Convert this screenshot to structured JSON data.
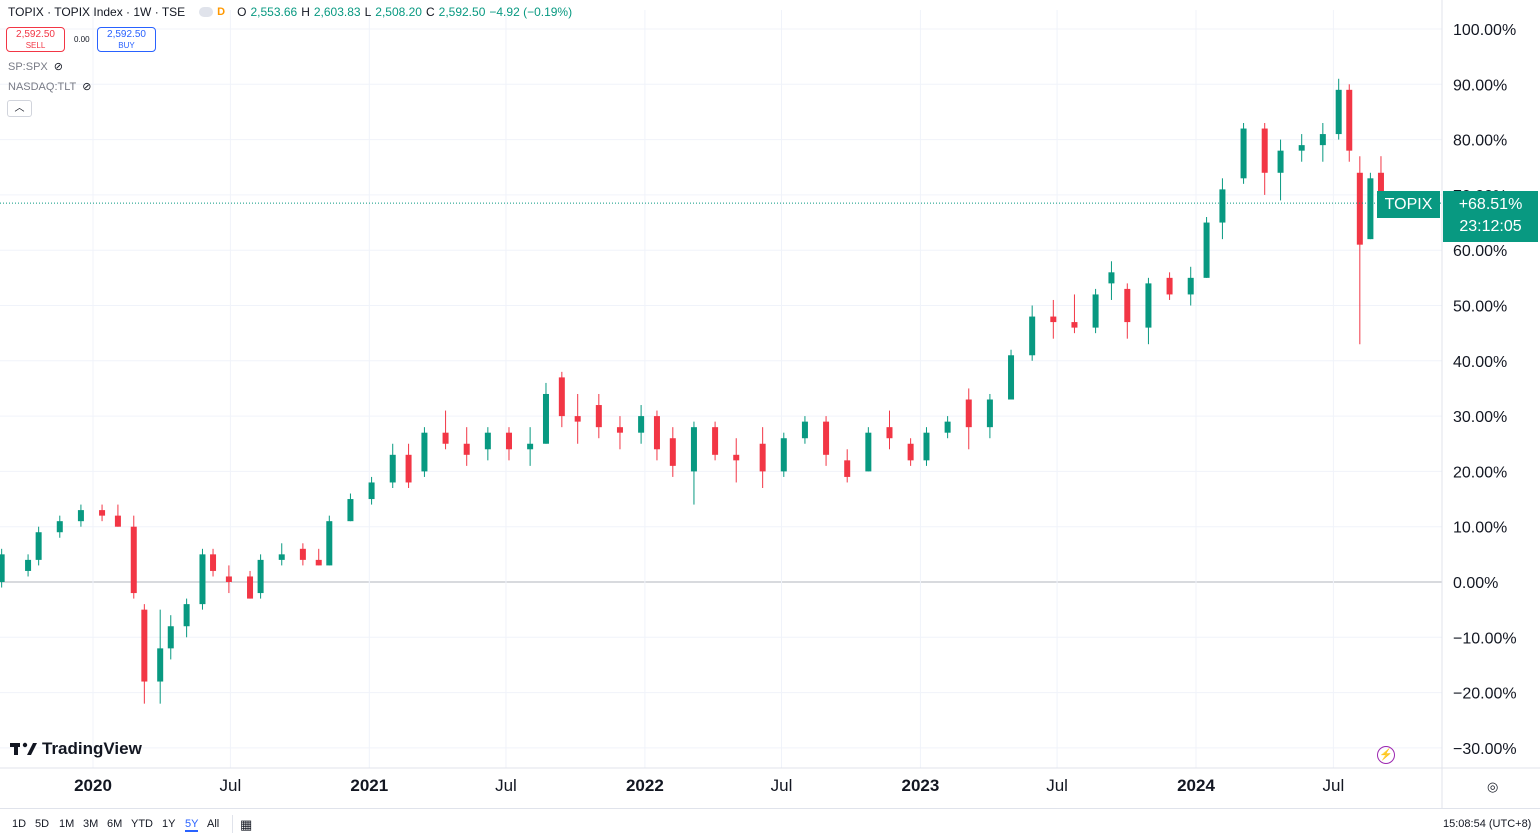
{
  "header": {
    "title": "TOPIX · TOPIX Index · 1W · TSE",
    "badge": "D",
    "open_label": "O",
    "open": "2,553.66",
    "high_label": "H",
    "high": "2,603.83",
    "low_label": "L",
    "low": "2,508.20",
    "close_label": "C",
    "close": "2,592.50",
    "change": "−4.92 (−0.19%)"
  },
  "trade": {
    "sell_price": "2,592.50",
    "sell_label": "SELL",
    "spread": "0.00",
    "buy_price": "2,592.50",
    "buy_label": "BUY"
  },
  "comparisons": [
    "SP:SPX",
    "NASDAQ:TLT"
  ],
  "price_label": {
    "symbol": "TOPIX",
    "value": "+68.51%",
    "countdown": "23:12:05"
  },
  "logo_text": "TradingView",
  "ranges": [
    "1D",
    "5D",
    "1M",
    "3M",
    "6M",
    "YTD",
    "1Y",
    "5Y",
    "All"
  ],
  "active_range": "5Y",
  "clock": "15:08:54 (UTC+8)",
  "colors": {
    "up": "#089981",
    "down": "#f23645",
    "accent": "#2962ff",
    "grid": "#f0f3fa"
  },
  "icons": [
    "eye-crossed-icon",
    "chevron-up-icon",
    "calendar-icon",
    "settings-icon",
    "lightning-icon"
  ],
  "chart_data": {
    "type": "candlestick",
    "yunit": "%",
    "ylim": [
      -33,
      103
    ],
    "ticks": [
      "100.00%",
      "90.00%",
      "80.00%",
      "70.00%",
      "60.00%",
      "50.00%",
      "40.00%",
      "30.00%",
      "20.00%",
      "10.00%",
      "0.00%",
      "−10.00%",
      "−20.00%",
      "−30.00%"
    ],
    "tick_values": [
      100,
      90,
      80,
      70,
      60,
      50,
      40,
      30,
      20,
      10,
      0,
      -10,
      -20,
      -30
    ],
    "x_labels": [
      {
        "label": "2020",
        "date": "2020-01-01",
        "bold": true
      },
      {
        "label": "Jul",
        "date": "2020-07-01",
        "bold": false
      },
      {
        "label": "2021",
        "date": "2021-01-01",
        "bold": true
      },
      {
        "label": "Jul",
        "date": "2021-07-01",
        "bold": false
      },
      {
        "label": "2022",
        "date": "2022-01-01",
        "bold": true
      },
      {
        "label": "Jul",
        "date": "2022-07-01",
        "bold": false
      },
      {
        "label": "2023",
        "date": "2023-01-01",
        "bold": true
      },
      {
        "label": "Jul",
        "date": "2023-07-01",
        "bold": false
      },
      {
        "label": "2024",
        "date": "2024-01-01",
        "bold": true
      },
      {
        "label": "Jul",
        "date": "2024-07-01",
        "bold": false
      }
    ],
    "last_value": 68.51,
    "ohlc": [
      {
        "t": "2019-09-02",
        "o": 0,
        "h": 6,
        "l": -1,
        "c": 5
      },
      {
        "t": "2019-10-07",
        "o": 2,
        "h": 5,
        "l": 1,
        "c": 4
      },
      {
        "t": "2019-10-21",
        "o": 4,
        "h": 10,
        "l": 3,
        "c": 9
      },
      {
        "t": "2019-11-18",
        "o": 9,
        "h": 12,
        "l": 8,
        "c": 11
      },
      {
        "t": "2019-12-16",
        "o": 11,
        "h": 14,
        "l": 10,
        "c": 13
      },
      {
        "t": "2020-01-13",
        "o": 13,
        "h": 14,
        "l": 11,
        "c": 12
      },
      {
        "t": "2020-02-03",
        "o": 12,
        "h": 14,
        "l": 10,
        "c": 10
      },
      {
        "t": "2020-02-24",
        "o": 10,
        "h": 12,
        "l": -3,
        "c": -2
      },
      {
        "t": "2020-03-09",
        "o": -5,
        "h": -4,
        "l": -22,
        "c": -18
      },
      {
        "t": "2020-03-30",
        "o": -18,
        "h": -5,
        "l": -22,
        "c": -12
      },
      {
        "t": "2020-04-13",
        "o": -12,
        "h": -6,
        "l": -14,
        "c": -8
      },
      {
        "t": "2020-05-04",
        "o": -8,
        "h": -3,
        "l": -10,
        "c": -4
      },
      {
        "t": "2020-05-25",
        "o": -4,
        "h": 6,
        "l": -5,
        "c": 5
      },
      {
        "t": "2020-06-08",
        "o": 5,
        "h": 6,
        "l": 1,
        "c": 2
      },
      {
        "t": "2020-06-29",
        "o": 1,
        "h": 3,
        "l": -2,
        "c": 0
      },
      {
        "t": "2020-07-27",
        "o": 1,
        "h": 2,
        "l": -3,
        "c": -3
      },
      {
        "t": "2020-08-10",
        "o": -2,
        "h": 5,
        "l": -3,
        "c": 4
      },
      {
        "t": "2020-09-07",
        "o": 4,
        "h": 7,
        "l": 3,
        "c": 5
      },
      {
        "t": "2020-10-05",
        "o": 6,
        "h": 7,
        "l": 3,
        "c": 4
      },
      {
        "t": "2020-10-26",
        "o": 4,
        "h": 6,
        "l": 3,
        "c": 3
      },
      {
        "t": "2020-11-09",
        "o": 3,
        "h": 12,
        "l": 3,
        "c": 11
      },
      {
        "t": "2020-12-07",
        "o": 11,
        "h": 16,
        "l": 11,
        "c": 15
      },
      {
        "t": "2021-01-04",
        "o": 15,
        "h": 19,
        "l": 14,
        "c": 18
      },
      {
        "t": "2021-02-01",
        "o": 18,
        "h": 25,
        "l": 17,
        "c": 23
      },
      {
        "t": "2021-02-22",
        "o": 23,
        "h": 25,
        "l": 17,
        "c": 18
      },
      {
        "t": "2021-03-15",
        "o": 20,
        "h": 28,
        "l": 19,
        "c": 27
      },
      {
        "t": "2021-04-12",
        "o": 27,
        "h": 31,
        "l": 24,
        "c": 25
      },
      {
        "t": "2021-05-10",
        "o": 25,
        "h": 28,
        "l": 21,
        "c": 23
      },
      {
        "t": "2021-06-07",
        "o": 24,
        "h": 28,
        "l": 22,
        "c": 27
      },
      {
        "t": "2021-07-05",
        "o": 27,
        "h": 28,
        "l": 22,
        "c": 24
      },
      {
        "t": "2021-08-02",
        "o": 24,
        "h": 28,
        "l": 21,
        "c": 25
      },
      {
        "t": "2021-08-23",
        "o": 25,
        "h": 36,
        "l": 25,
        "c": 34
      },
      {
        "t": "2021-09-13",
        "o": 37,
        "h": 38,
        "l": 28,
        "c": 30
      },
      {
        "t": "2021-10-04",
        "o": 30,
        "h": 34,
        "l": 25,
        "c": 29
      },
      {
        "t": "2021-11-01",
        "o": 32,
        "h": 34,
        "l": 26,
        "c": 28
      },
      {
        "t": "2021-11-29",
        "o": 28,
        "h": 30,
        "l": 24,
        "c": 27
      },
      {
        "t": "2021-12-27",
        "o": 27,
        "h": 32,
        "l": 25,
        "c": 30
      },
      {
        "t": "2022-01-17",
        "o": 30,
        "h": 31,
        "l": 22,
        "c": 24
      },
      {
        "t": "2022-02-07",
        "o": 26,
        "h": 28,
        "l": 19,
        "c": 21
      },
      {
        "t": "2022-03-07",
        "o": 20,
        "h": 29,
        "l": 14,
        "c": 28
      },
      {
        "t": "2022-04-04",
        "o": 28,
        "h": 29,
        "l": 22,
        "c": 23
      },
      {
        "t": "2022-05-02",
        "o": 23,
        "h": 26,
        "l": 18,
        "c": 22
      },
      {
        "t": "2022-06-06",
        "o": 25,
        "h": 28,
        "l": 17,
        "c": 20
      },
      {
        "t": "2022-07-04",
        "o": 20,
        "h": 27,
        "l": 19,
        "c": 26
      },
      {
        "t": "2022-08-01",
        "o": 26,
        "h": 30,
        "l": 25,
        "c": 29
      },
      {
        "t": "2022-08-29",
        "o": 29,
        "h": 30,
        "l": 21,
        "c": 23
      },
      {
        "t": "2022-09-26",
        "o": 22,
        "h": 24,
        "l": 18,
        "c": 19
      },
      {
        "t": "2022-10-24",
        "o": 20,
        "h": 28,
        "l": 20,
        "c": 27
      },
      {
        "t": "2022-11-21",
        "o": 28,
        "h": 31,
        "l": 24,
        "c": 26
      },
      {
        "t": "2022-12-19",
        "o": 25,
        "h": 26,
        "l": 21,
        "c": 22
      },
      {
        "t": "2023-01-09",
        "o": 22,
        "h": 28,
        "l": 21,
        "c": 27
      },
      {
        "t": "2023-02-06",
        "o": 27,
        "h": 30,
        "l": 26,
        "c": 29
      },
      {
        "t": "2023-03-06",
        "o": 33,
        "h": 35,
        "l": 24,
        "c": 28
      },
      {
        "t": "2023-04-03",
        "o": 28,
        "h": 34,
        "l": 26,
        "c": 33
      },
      {
        "t": "2023-05-01",
        "o": 33,
        "h": 42,
        "l": 33,
        "c": 41
      },
      {
        "t": "2023-05-29",
        "o": 41,
        "h": 50,
        "l": 40,
        "c": 48
      },
      {
        "t": "2023-06-26",
        "o": 48,
        "h": 51,
        "l": 44,
        "c": 47
      },
      {
        "t": "2023-07-24",
        "o": 47,
        "h": 52,
        "l": 45,
        "c": 46
      },
      {
        "t": "2023-08-21",
        "o": 46,
        "h": 53,
        "l": 45,
        "c": 52
      },
      {
        "t": "2023-09-11",
        "o": 54,
        "h": 58,
        "l": 51,
        "c": 56
      },
      {
        "t": "2023-10-02",
        "o": 53,
        "h": 54,
        "l": 44,
        "c": 47
      },
      {
        "t": "2023-10-30",
        "o": 46,
        "h": 55,
        "l": 43,
        "c": 54
      },
      {
        "t": "2023-11-27",
        "o": 55,
        "h": 56,
        "l": 51,
        "c": 52
      },
      {
        "t": "2023-12-25",
        "o": 52,
        "h": 57,
        "l": 50,
        "c": 55
      },
      {
        "t": "2024-01-15",
        "o": 55,
        "h": 66,
        "l": 55,
        "c": 65
      },
      {
        "t": "2024-02-05",
        "o": 65,
        "h": 73,
        "l": 62,
        "c": 71
      },
      {
        "t": "2024-03-04",
        "o": 73,
        "h": 83,
        "l": 72,
        "c": 82
      },
      {
        "t": "2024-04-01",
        "o": 82,
        "h": 83,
        "l": 70,
        "c": 74
      },
      {
        "t": "2024-04-22",
        "o": 74,
        "h": 80,
        "l": 69,
        "c": 78
      },
      {
        "t": "2024-05-20",
        "o": 78,
        "h": 81,
        "l": 76,
        "c": 79
      },
      {
        "t": "2024-06-17",
        "o": 79,
        "h": 83,
        "l": 76,
        "c": 81
      },
      {
        "t": "2024-07-08",
        "o": 81,
        "h": 91,
        "l": 80,
        "c": 89
      },
      {
        "t": "2024-07-22",
        "o": 89,
        "h": 90,
        "l": 76,
        "c": 78
      },
      {
        "t": "2024-08-05",
        "o": 74,
        "h": 77,
        "l": 43,
        "c": 61
      },
      {
        "t": "2024-08-19",
        "o": 62,
        "h": 74,
        "l": 62,
        "c": 73
      },
      {
        "t": "2024-09-02",
        "o": 74,
        "h": 77,
        "l": 66,
        "c": 68.5
      }
    ]
  }
}
